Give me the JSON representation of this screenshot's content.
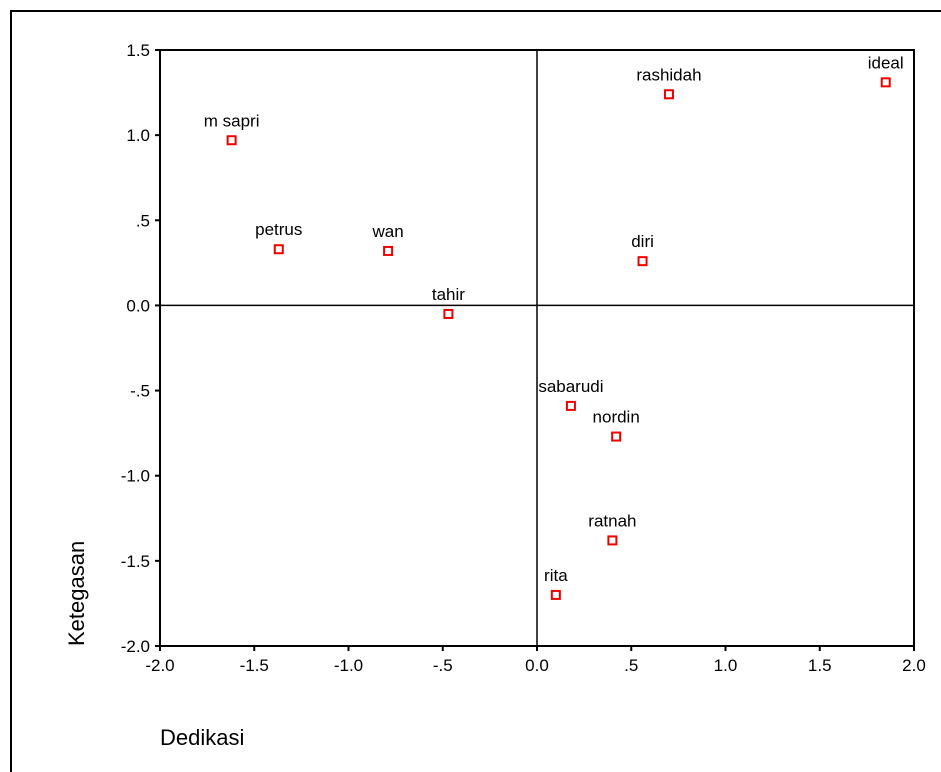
{
  "chart_data": {
    "type": "scatter",
    "xlabel": "Dedikasi",
    "ylabel": "Ketegasan",
    "xlim": [
      -2.0,
      2.0
    ],
    "ylim": [
      -2.0,
      1.5
    ],
    "x_ticks": [
      -2.0,
      -1.5,
      -1.0,
      -0.5,
      0.0,
      0.5,
      1.0,
      1.5,
      2.0
    ],
    "x_tick_labels": [
      "-2.0",
      "-1.5",
      "-1.0",
      "-.5",
      "0.0",
      ".5",
      "1.0",
      "1.5",
      "2.0"
    ],
    "y_ticks": [
      1.5,
      1.0,
      0.5,
      0.0,
      -0.5,
      -1.0,
      -1.5,
      -2.0
    ],
    "y_tick_labels": [
      "1.5",
      "1.0",
      ".5",
      "0.0",
      "-.5",
      "-1.0",
      "-1.5",
      "-2.0"
    ],
    "reference_lines": {
      "x": 0.0,
      "y": 0.0
    },
    "marker_color": "#ee0000",
    "points": [
      {
        "label": "m sapri",
        "x": -1.62,
        "y": 0.97
      },
      {
        "label": "petrus",
        "x": -1.37,
        "y": 0.33
      },
      {
        "label": "wan",
        "x": -0.79,
        "y": 0.32
      },
      {
        "label": "tahir",
        "x": -0.47,
        "y": -0.05
      },
      {
        "label": "rashidah",
        "x": 0.7,
        "y": 1.24
      },
      {
        "label": "ideal",
        "x": 1.85,
        "y": 1.31
      },
      {
        "label": "diri",
        "x": 0.56,
        "y": 0.26
      },
      {
        "label": "sabarudi",
        "x": 0.18,
        "y": -0.59
      },
      {
        "label": "nordin",
        "x": 0.42,
        "y": -0.77
      },
      {
        "label": "ratnah",
        "x": 0.4,
        "y": -1.38
      },
      {
        "label": "rita",
        "x": 0.1,
        "y": -1.7
      }
    ]
  }
}
